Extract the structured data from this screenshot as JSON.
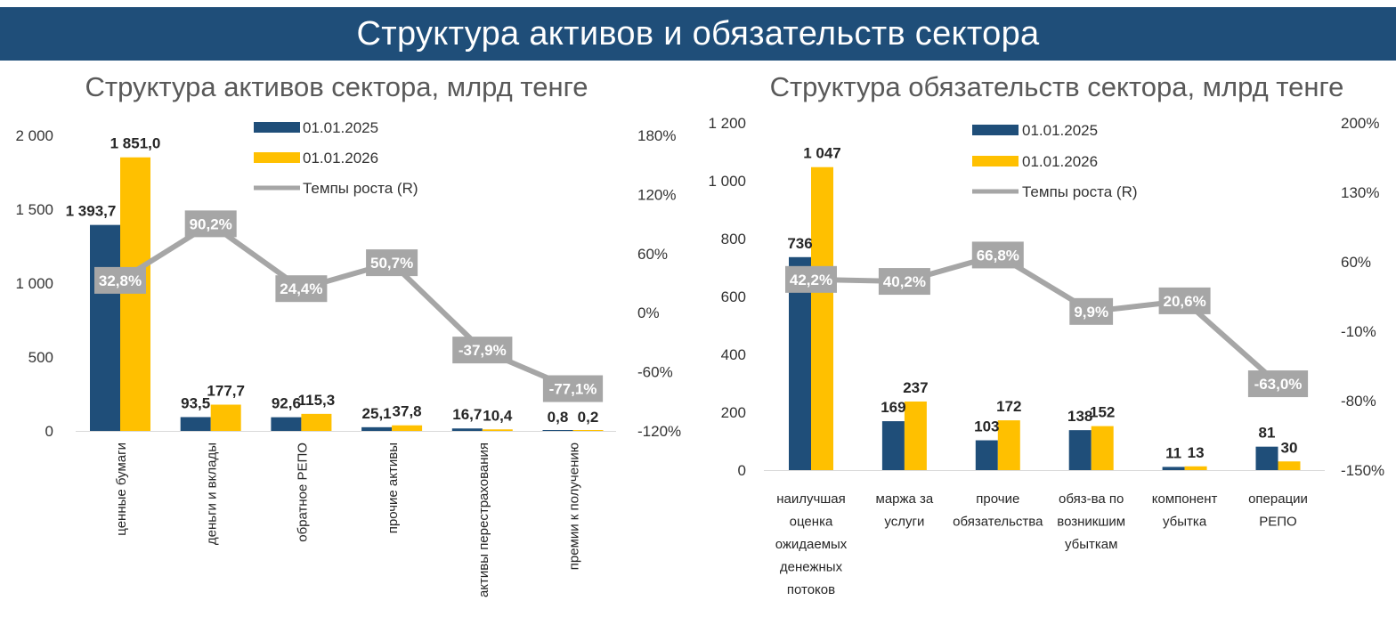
{
  "header": {
    "title": "Структура активов и обязательств сектора"
  },
  "colors": {
    "banner": "#1f4e79",
    "series_2025": "#1f4e79",
    "series_2026": "#ffc000",
    "growth_line": "#a6a6a6",
    "growth_box": "#a6a6a6"
  },
  "chart_data": [
    {
      "type": "bar",
      "title": "Структура активов сектора, млрд тенге",
      "categories": [
        "ценные бумаги",
        "деньги и вклады",
        "обратное РЕПО",
        "прочие активы",
        "активы перестрахования",
        "премии к получению"
      ],
      "category_orientation": "vertical",
      "series": [
        {
          "name": "01.01.2025",
          "values": [
            1393.7,
            93.5,
            92.6,
            25.1,
            16.7,
            0.8
          ],
          "labels": [
            "1 393,7",
            "93,5",
            "92,6",
            "25,1",
            "16,7",
            "0,8"
          ]
        },
        {
          "name": "01.01.2026",
          "values": [
            1851.0,
            177.7,
            115.3,
            37.8,
            10.4,
            0.2
          ],
          "labels": [
            "1 851,0",
            "177,7",
            "115,3",
            "37,8",
            "10,4",
            "0,2"
          ]
        }
      ],
      "line_series": {
        "name": "Темпы роста (R)",
        "values": [
          32.8,
          90.2,
          24.4,
          50.7,
          -37.9,
          -77.1
        ],
        "labels": [
          "32,8%",
          "90,2%",
          "24,4%",
          "50,7%",
          "-37,9%",
          "-77,1%"
        ]
      },
      "ylim": [
        0,
        2000
      ],
      "yticks": [
        0,
        500,
        1000,
        1500,
        2000
      ],
      "ytick_labels": [
        "0",
        "500",
        "1 000",
        "1 500",
        "2 000"
      ],
      "y2lim": [
        -120,
        180
      ],
      "y2ticks": [
        -120,
        -60,
        0,
        60,
        120,
        180
      ],
      "y2tick_labels": [
        "-120%",
        "-60%",
        "0%",
        "60%",
        "120%",
        "180%"
      ],
      "legend": [
        "01.01.2025",
        "01.01.2026",
        "Темпы роста (R)"
      ],
      "legend_position": "top-center"
    },
    {
      "type": "bar",
      "title": "Структура обязательств сектора, млрд тенге",
      "categories": [
        "наилучшая оценка ожидаемых денежных потоков",
        "маржа за услуги",
        "прочие обязательства",
        "обяз-ва по возникшим убыткам",
        "компонент убытка",
        "операции РЕПО"
      ],
      "category_lines": [
        [
          "наилучшая",
          "оценка",
          "ожидаемых",
          "денежных",
          "потоков"
        ],
        [
          "маржа за",
          "услуги"
        ],
        [
          "прочие",
          "обязательства"
        ],
        [
          "обяз-ва по",
          "возникшим",
          "убыткам"
        ],
        [
          "компонент",
          "убытка"
        ],
        [
          "операции",
          "РЕПО"
        ]
      ],
      "category_orientation": "horizontal",
      "series": [
        {
          "name": "01.01.2025",
          "values": [
            736,
            169,
            103,
            138,
            11,
            81
          ],
          "labels": [
            "736",
            "169",
            "103",
            "138",
            "11",
            "81"
          ]
        },
        {
          "name": "01.01.2026",
          "values": [
            1047,
            237,
            172,
            152,
            13,
            30
          ],
          "labels": [
            "1 047",
            "237",
            "172",
            "152",
            "13",
            "30"
          ]
        }
      ],
      "line_series": {
        "name": "Темпы роста (R)",
        "values": [
          42.2,
          40.2,
          66.8,
          9.9,
          20.6,
          -63.0
        ],
        "labels": [
          "42,2%",
          "40,2%",
          "66,8%",
          "9,9%",
          "20,6%",
          "-63,0%"
        ]
      },
      "ylim": [
        0,
        1200
      ],
      "yticks": [
        0,
        200,
        400,
        600,
        800,
        1000,
        1200
      ],
      "ytick_labels": [
        "0",
        "200",
        "400",
        "600",
        "800",
        "1 000",
        "1 200"
      ],
      "y2lim": [
        -150,
        200
      ],
      "y2ticks": [
        -150,
        -80,
        -10,
        60,
        130,
        200
      ],
      "y2tick_labels": [
        "-150%",
        "-80%",
        "-10%",
        "60%",
        "130%",
        "200%"
      ],
      "legend": [
        "01.01.2025",
        "01.01.2026",
        "Темпы роста (R)"
      ],
      "legend_position": "top-center"
    }
  ]
}
